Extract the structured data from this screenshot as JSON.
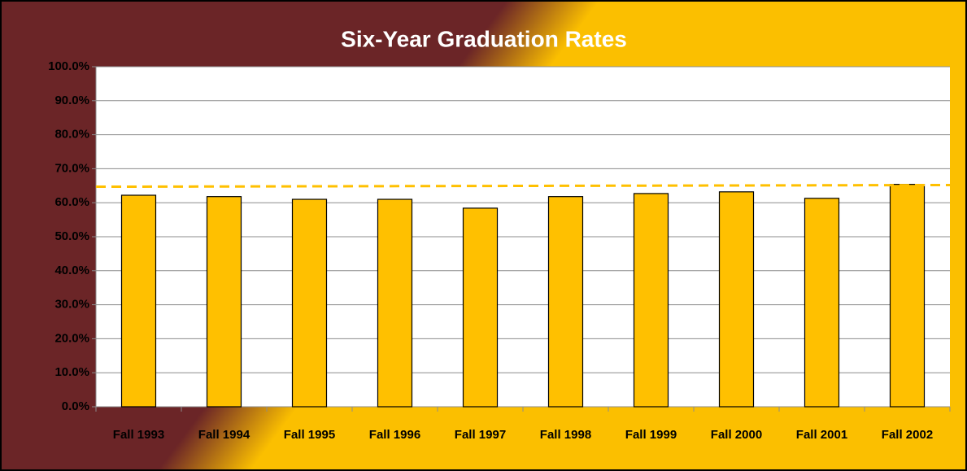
{
  "chart_data": {
    "type": "bar",
    "title": "Six-Year Graduation Rates",
    "categories": [
      "Fall 1993",
      "Fall 1994",
      "Fall 1995",
      "Fall 1996",
      "Fall 1997",
      "Fall 1998",
      "Fall 1999",
      "Fall 2000",
      "Fall 2001",
      "Fall 2002"
    ],
    "values": [
      62.2,
      61.8,
      61.0,
      61.0,
      58.4,
      61.8,
      62.7,
      63.2,
      61.3,
      65.4
    ],
    "color": "#ffc000",
    "trendline": {
      "start": 64.7,
      "end": 65.2,
      "color": "#ffc000"
    },
    "ylim": [
      0,
      100
    ],
    "yticks": [
      {
        "value": 0,
        "label": "0.0%"
      },
      {
        "value": 10,
        "label": "10.0%"
      },
      {
        "value": 20,
        "label": "20.0%"
      },
      {
        "value": 30,
        "label": "30.0%"
      },
      {
        "value": 40,
        "label": "40.0%"
      },
      {
        "value": 50,
        "label": "50.0%"
      },
      {
        "value": 60,
        "label": "60.0%"
      },
      {
        "value": 70,
        "label": "70.0%"
      },
      {
        "value": 80,
        "label": "80.0%"
      },
      {
        "value": 90,
        "label": "90.0%"
      },
      {
        "value": 100,
        "label": "100.0%"
      }
    ],
    "grid": true
  }
}
